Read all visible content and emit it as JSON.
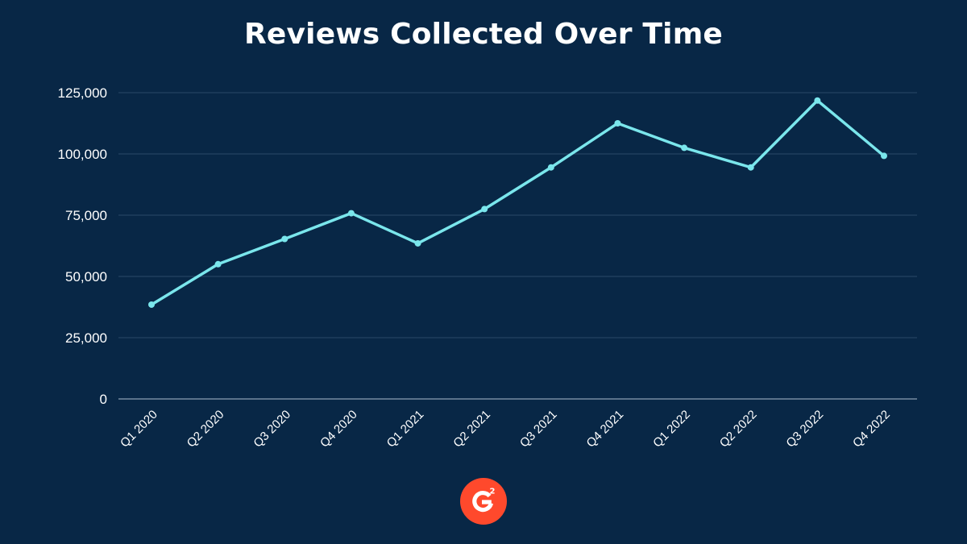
{
  "chart_data": {
    "type": "line",
    "title": "Reviews Collected Over Time",
    "categories": [
      "Q1 2020",
      "Q2 2020",
      "Q3 2020",
      "Q4 2020",
      "Q1 2021",
      "Q2 2021",
      "Q3 2021",
      "Q4 2021",
      "Q1 2022",
      "Q2 2022",
      "Q3 2022",
      "Q4 2022"
    ],
    "series": [
      {
        "values": [
          38500,
          55000,
          65300,
          75800,
          63500,
          77500,
          94500,
          112500,
          102500,
          94500,
          121800,
          99200
        ]
      }
    ],
    "ylim": [
      0,
      125000
    ],
    "yticks": [
      0,
      25000,
      50000,
      75000,
      100000,
      125000
    ],
    "ytick_labels": [
      "0",
      "25,000",
      "50,000",
      "75,000",
      "100,000",
      "125,000"
    ],
    "grid": true,
    "xlabel": "",
    "ylabel": ""
  },
  "colors": {
    "background": "#082746",
    "line": "#7ae6ec",
    "grid": "#2a4a68",
    "axis": "#8aa0b5",
    "text": "#ffffff",
    "logo": "#ff492c"
  },
  "logo": {
    "name": "g2-logo-icon",
    "text": "G2"
  }
}
